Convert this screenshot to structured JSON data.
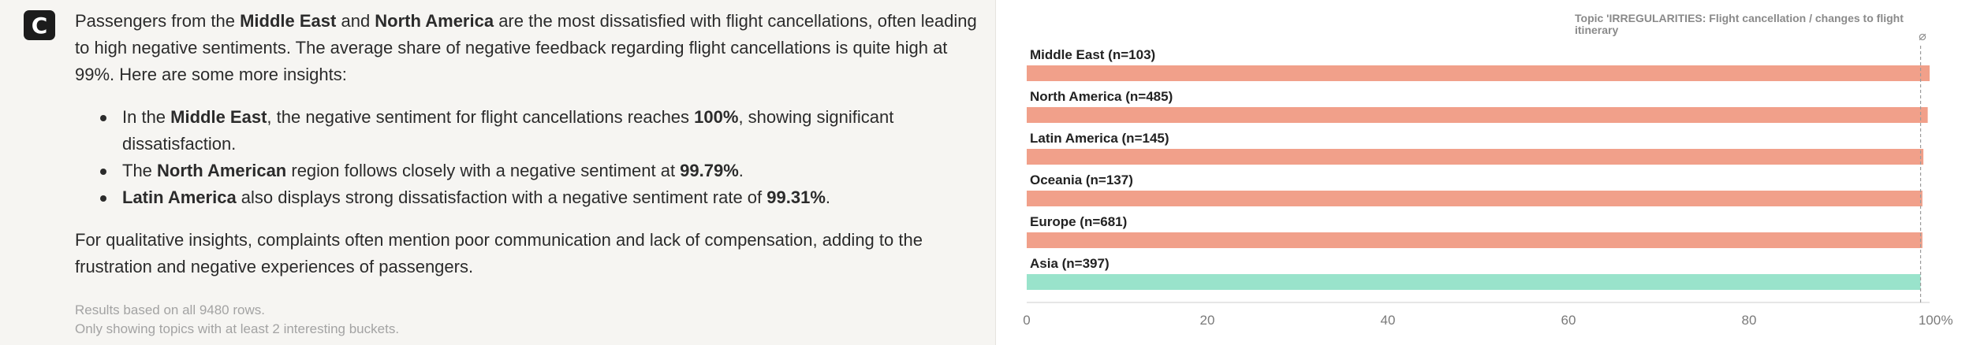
{
  "app": {
    "logo_letter": "C"
  },
  "message": {
    "p1": [
      {
        "t": "Passengers from the ",
        "b": false
      },
      {
        "t": "Middle East",
        "b": true
      },
      {
        "t": " and ",
        "b": false
      },
      {
        "t": "North America",
        "b": true
      },
      {
        "t": " are the most dissatisfied with flight cancellations, often leading to high negative sentiments. The average share of negative feedback regarding flight cancellations is quite high at 99%. Here are some more insights:",
        "b": false
      }
    ],
    "bullets": [
      [
        {
          "t": "In the ",
          "b": false
        },
        {
          "t": "Middle East",
          "b": true
        },
        {
          "t": ", the negative sentiment for flight cancellations reaches ",
          "b": false
        },
        {
          "t": "100%",
          "b": true
        },
        {
          "t": ", showing significant dissatisfaction.",
          "b": false
        }
      ],
      [
        {
          "t": "The ",
          "b": false
        },
        {
          "t": "North American",
          "b": true
        },
        {
          "t": " region follows closely with a negative sentiment at ",
          "b": false
        },
        {
          "t": "99.79%",
          "b": true
        },
        {
          "t": ".",
          "b": false
        }
      ],
      [
        {
          "t": "Latin America",
          "b": true
        },
        {
          "t": " also displays strong dissatisfaction with a negative sentiment rate of ",
          "b": false
        },
        {
          "t": "99.31%",
          "b": true
        },
        {
          "t": ".",
          "b": false
        }
      ]
    ],
    "p2": [
      {
        "t": "For qualitative insights, complaints often mention poor communication and lack of compensation, adding to the frustration and negative experiences of passengers.",
        "b": false
      }
    ],
    "footnote_line1": "Results based on all 9480 rows.",
    "footnote_line2": "Only showing topics with at least 2 interesting buckets."
  },
  "chart_data": {
    "type": "bar",
    "orientation": "horizontal",
    "categories": [
      "Middle East (n=103)",
      "North America (n=485)",
      "Latin America (n=145)",
      "Oceania (n=137)",
      "Europe (n=681)",
      "Asia (n=397)"
    ],
    "values": [
      100,
      99.79,
      99.31,
      99.2,
      99.2,
      99.0
    ],
    "colors": [
      "#f1a08a",
      "#f1a08a",
      "#f1a08a",
      "#f1a08a",
      "#f1a08a",
      "#99e3cb"
    ],
    "xlim": [
      0,
      100
    ],
    "x_ticks": [
      "0",
      "20",
      "40",
      "60",
      "80",
      "100"
    ],
    "x_unit": "%",
    "reference_line": {
      "value": 99,
      "label": "Topic 'IRREGULARITIES: Flight cancellation / changes to flight itinerary",
      "icon": "⌀"
    },
    "grid": false
  }
}
